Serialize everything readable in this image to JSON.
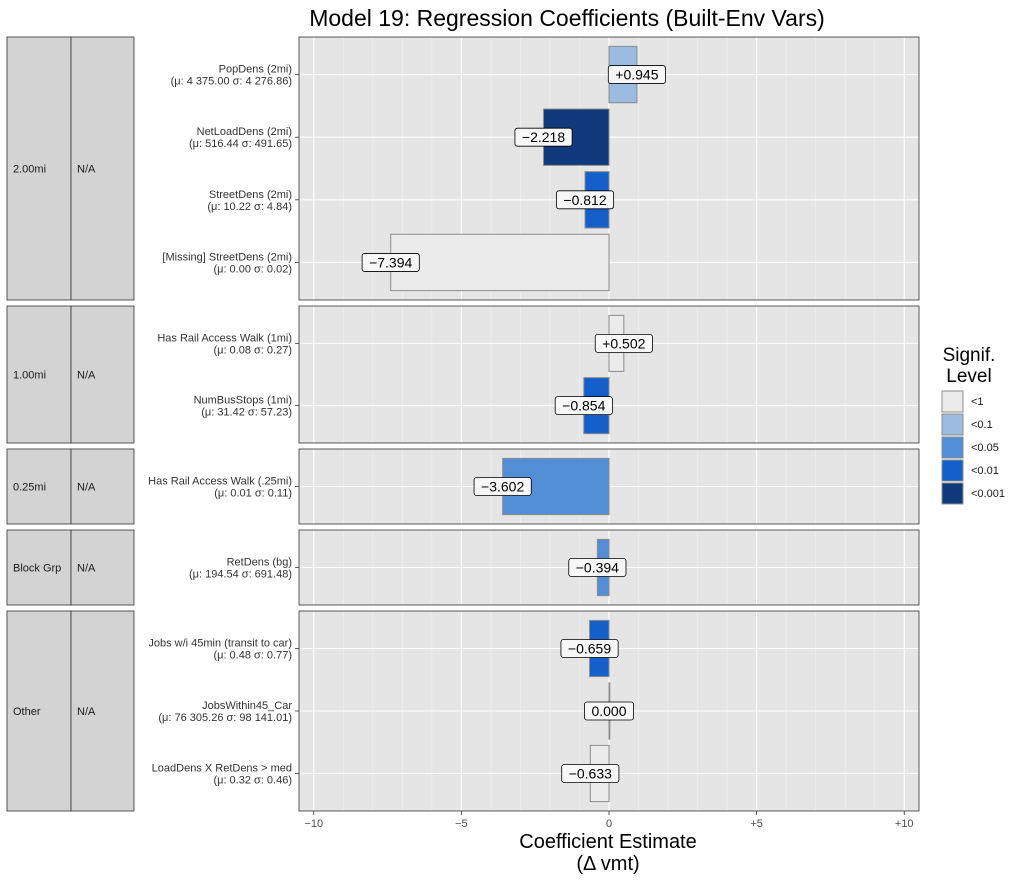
{
  "chart_data": {
    "type": "bar",
    "orientation": "horizontal",
    "title": "Model 19: Regression Coefficients (Built-Env Vars)",
    "xlabel_line1": "Coefficient Estimate",
    "xlabel_line2": "(Δ vmt)",
    "xlim": [
      -10.5,
      10.5
    ],
    "xticks": [
      {
        "value": -10,
        "label": "−10"
      },
      {
        "value": -5,
        "label": "−5"
      },
      {
        "value": 0,
        "label": "0"
      },
      {
        "value": 5,
        "label": "+5"
      },
      {
        "value": 10,
        "label": "+10"
      }
    ],
    "legend": {
      "title_line1": "Signif.",
      "title_line2": "Level",
      "position": "right",
      "levels": [
        {
          "label": "<1",
          "color": "#ebebeb"
        },
        {
          "label": "<0.1",
          "color": "#9bbce0"
        },
        {
          "label": "<0.05",
          "color": "#528ed6"
        },
        {
          "label": "<0.01",
          "color": "#155fca"
        },
        {
          "label": "<0.001",
          "color": "#103a7b"
        }
      ]
    },
    "facets": [
      {
        "strip1": "2.00mi",
        "strip2": "N/A",
        "rows": [
          {
            "name": "PopDens (2mi)",
            "stats": "(μ: 4 375.00  σ: 4 276.86)",
            "value": 0.945,
            "label": "+0.945",
            "level": 1,
            "bar_h": 0.9
          },
          {
            "name": "NetLoadDens (2mi)",
            "stats": "(μ: 516.44  σ: 491.65)",
            "value": -2.218,
            "label": "−2.218",
            "level": 4,
            "bar_h": 0.9
          },
          {
            "name": "StreetDens (2mi)",
            "stats": "(μ: 10.22  σ: 4.84)",
            "value": -0.812,
            "label": "−0.812",
            "level": 3,
            "bar_h": 0.9
          },
          {
            "name": "[Missing] StreetDens (2mi)",
            "stats": "(μ: 0.00  σ: 0.02)",
            "value": -7.394,
            "label": "−7.394",
            "level": 0,
            "bar_h": 0.9
          }
        ]
      },
      {
        "strip1": "1.00mi",
        "strip2": "N/A",
        "rows": [
          {
            "name": "Has Rail Access Walk (1mi)",
            "stats": "(μ: 0.08  σ: 0.27)",
            "value": 0.502,
            "label": "+0.502",
            "level": 0,
            "bar_h": 0.9
          },
          {
            "name": "NumBusStops (1mi)",
            "stats": "(μ: 31.42  σ: 57.23)",
            "value": -0.854,
            "label": "−0.854",
            "level": 3,
            "bar_h": 0.9
          }
        ]
      },
      {
        "strip1": "0.25mi",
        "strip2": "N/A",
        "rows": [
          {
            "name": "Has Rail Access Walk (.25mi)",
            "stats": "(μ: 0.01  σ: 0.11)",
            "value": -3.602,
            "label": "−3.602",
            "level": 2,
            "bar_h": 0.9
          }
        ]
      },
      {
        "strip1": "Block Grp",
        "strip2": "N/A",
        "rows": [
          {
            "name": "RetDens (bg)",
            "stats": "(μ: 194.54  σ: 691.48)",
            "value": -0.394,
            "label": "−0.394",
            "level": 2,
            "bar_h": 0.9
          }
        ]
      },
      {
        "strip1": "Other",
        "strip2": "N/A",
        "rows": [
          {
            "name": "Jobs w/i 45min (transit to car)",
            "stats": "(μ: 0.48  σ: 0.77)",
            "value": -0.659,
            "label": "−0.659",
            "level": 3,
            "bar_h": 0.9
          },
          {
            "name": "JobsWithin45_Car",
            "stats": "(μ: 76 305.26  σ: 98 141.01)",
            "value": 0.0,
            "label": "0.000",
            "level": 0,
            "bar_h": 0.9
          },
          {
            "name": "LoadDens X RetDens > med",
            "stats": "(μ: 0.32  σ: 0.46)",
            "value": -0.633,
            "label": "−0.633",
            "level": 0,
            "bar_h": 0.9
          }
        ]
      }
    ]
  }
}
